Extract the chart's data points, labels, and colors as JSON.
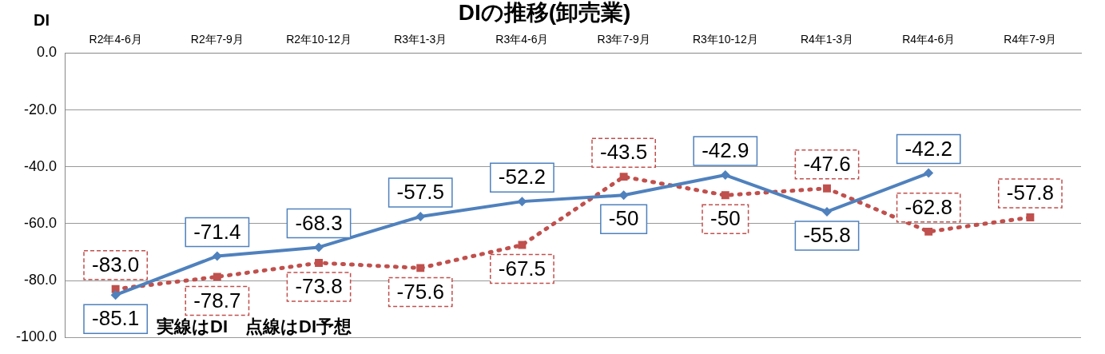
{
  "chart_data": {
    "type": "line",
    "title": "DIの推移(卸売業)",
    "ylabel": "DI",
    "categories": [
      "R2年4-6月",
      "R2年7-9月",
      "R2年10-12月",
      "R3年1-3月",
      "R3年4-6月",
      "R3年7-9月",
      "R3年10-12月",
      "R4年1-3月",
      "R4年4-6月",
      "R4年7-9月"
    ],
    "series": [
      {
        "color": "#4f81bd",
        "marker": "diamond",
        "line_style": "solid",
        "values": [
          -85.1,
          -71.4,
          -68.3,
          -57.5,
          -52.2,
          -50,
          -42.9,
          -55.8,
          -42.2,
          null
        ],
        "value_labels": [
          "-85.1",
          "-71.4",
          "-68.3",
          "-57.5",
          "-52.2",
          "-50",
          "-42.9",
          "-55.8",
          "-42.2",
          null
        ]
      },
      {
        "color": "#c0504d",
        "marker": "square",
        "line_style": "dotted",
        "values": [
          -83.0,
          -78.7,
          -73.8,
          -75.6,
          -67.5,
          -43.5,
          -50,
          -47.6,
          -62.8,
          -57.8
        ],
        "value_labels": [
          "-83.0",
          "-78.7",
          "-73.8",
          "-75.6",
          "-67.5",
          "-43.5",
          "-50",
          "-47.6",
          "-62.8",
          "-57.8"
        ]
      }
    ],
    "ylim": [
      -100,
      0
    ],
    "yticks": [
      {
        "value": 0,
        "label": "0.0"
      },
      {
        "value": -20,
        "label": "-20.0"
      },
      {
        "value": -40,
        "label": "-40.0"
      },
      {
        "value": -60,
        "label": "-60.0"
      },
      {
        "value": -80,
        "label": "-80.0"
      },
      {
        "value": -100,
        "label": "-100.0"
      }
    ],
    "grid": "y",
    "legend": false,
    "annotations": [
      "実線はDI　点線はDI予想"
    ]
  }
}
